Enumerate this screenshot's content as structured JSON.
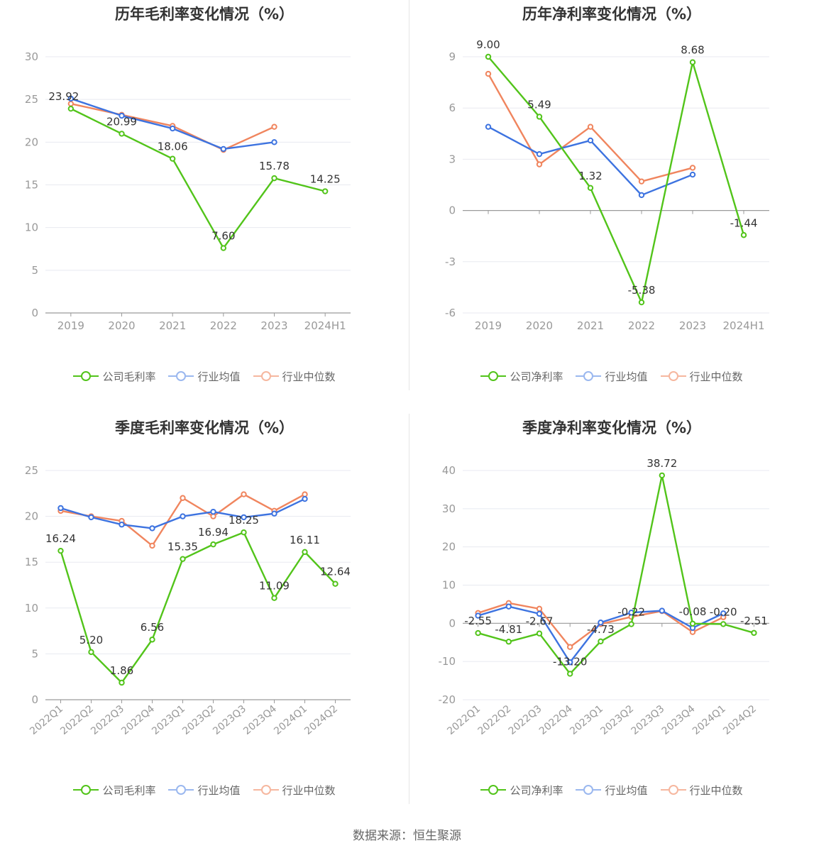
{
  "source": "数据来源：恒生聚源",
  "colors": {
    "company": "#52c41a",
    "average": "#3d73e0",
    "median": "#f0855e",
    "axis": "#999999",
    "grid": "#e8eaf0",
    "text": "#666666"
  },
  "chart_data": [
    {
      "type": "line",
      "title": "历年毛利率变化情况（%）",
      "categories": [
        "2019",
        "2020",
        "2021",
        "2022",
        "2023",
        "2024H1"
      ],
      "ylim": [
        0,
        30
      ],
      "yticks": [
        0,
        5,
        10,
        15,
        20,
        25,
        30
      ],
      "grid": true,
      "legend": "bottom",
      "series": [
        {
          "name": "公司毛利率",
          "key": "company",
          "values": [
            23.92,
            20.99,
            18.06,
            7.6,
            15.78,
            14.25
          ],
          "labels": [
            "23.92",
            "20.99",
            "18.06",
            "7.60",
            "15.78",
            "14.25"
          ]
        },
        {
          "name": "行业均值",
          "key": "average",
          "values": [
            25.1,
            23.1,
            21.6,
            19.2,
            20.0,
            null
          ]
        },
        {
          "name": "行业中位数",
          "key": "median",
          "values": [
            24.5,
            23.2,
            21.9,
            19.1,
            21.8,
            null
          ]
        }
      ]
    },
    {
      "type": "line",
      "title": "历年净利率变化情况（%）",
      "categories": [
        "2019",
        "2020",
        "2021",
        "2022",
        "2023",
        "2024H1"
      ],
      "ylim": [
        -6,
        9
      ],
      "yticks": [
        -6,
        -3,
        0,
        3,
        6,
        9
      ],
      "grid": true,
      "legend": "bottom",
      "series": [
        {
          "name": "公司净利率",
          "key": "company",
          "values": [
            9.0,
            5.49,
            1.32,
            -5.38,
            8.68,
            -1.44
          ],
          "labels": [
            "9.00",
            "5.49",
            "1.32",
            "-5.38",
            "8.68",
            "-1.44"
          ]
        },
        {
          "name": "行业均值",
          "key": "average",
          "values": [
            4.9,
            3.3,
            4.1,
            0.9,
            2.1,
            null
          ]
        },
        {
          "name": "行业中位数",
          "key": "median",
          "values": [
            8.0,
            2.7,
            4.9,
            1.7,
            2.5,
            null
          ]
        }
      ]
    },
    {
      "type": "line",
      "title": "季度毛利率变化情况（%）",
      "categories": [
        "2022Q1",
        "2022Q2",
        "2022Q3",
        "2022Q4",
        "2023Q1",
        "2023Q2",
        "2023Q3",
        "2023Q4",
        "2024Q1",
        "2024Q2"
      ],
      "ylim": [
        0,
        25
      ],
      "yticks": [
        0,
        5,
        10,
        15,
        20,
        25
      ],
      "grid": true,
      "legend": "bottom",
      "series": [
        {
          "name": "公司毛利率",
          "key": "company",
          "values": [
            16.24,
            5.2,
            1.86,
            6.56,
            15.35,
            16.94,
            18.25,
            11.09,
            16.11,
            12.64
          ],
          "labels": [
            "16.24",
            "5.20",
            "1.86",
            "6.56",
            "15.35",
            "16.94",
            "18.25",
            "11.09",
            "16.11",
            "12.64"
          ]
        },
        {
          "name": "行业均值",
          "key": "average",
          "values": [
            20.9,
            19.9,
            19.1,
            18.7,
            20.0,
            20.5,
            19.9,
            20.3,
            21.9,
            null
          ]
        },
        {
          "name": "行业中位数",
          "key": "median",
          "values": [
            20.6,
            20.0,
            19.5,
            16.8,
            22.0,
            20.0,
            22.4,
            20.6,
            22.4,
            null
          ]
        }
      ]
    },
    {
      "type": "line",
      "title": "季度净利率变化情况（%）",
      "categories": [
        "2022Q1",
        "2022Q2",
        "2022Q3",
        "2022Q4",
        "2023Q1",
        "2023Q2",
        "2023Q3",
        "2023Q4",
        "2024Q1",
        "2024Q2"
      ],
      "ylim": [
        -20,
        40
      ],
      "yticks": [
        -20,
        -10,
        0,
        10,
        20,
        30,
        40
      ],
      "grid": true,
      "legend": "bottom",
      "series": [
        {
          "name": "公司净利率",
          "key": "company",
          "values": [
            -2.55,
            -4.81,
            -2.67,
            -13.2,
            -4.73,
            -0.22,
            38.72,
            -0.08,
            -0.2,
            -2.51
          ],
          "labels": [
            "-2.55",
            "-4.81",
            "-2.67",
            "-13.20",
            "-4.73",
            "-0.22",
            "38.72",
            "-0.08",
            "-0.20",
            "-2.51"
          ]
        },
        {
          "name": "行业均值",
          "key": "average",
          "values": [
            2.0,
            4.4,
            2.5,
            -10.2,
            0.2,
            2.8,
            3.3,
            -1.2,
            2.6,
            null
          ]
        },
        {
          "name": "行业中位数",
          "key": "median",
          "values": [
            2.7,
            5.3,
            3.8,
            -6.2,
            -0.2,
            1.7,
            3.2,
            -2.3,
            1.6,
            null
          ]
        }
      ]
    }
  ]
}
